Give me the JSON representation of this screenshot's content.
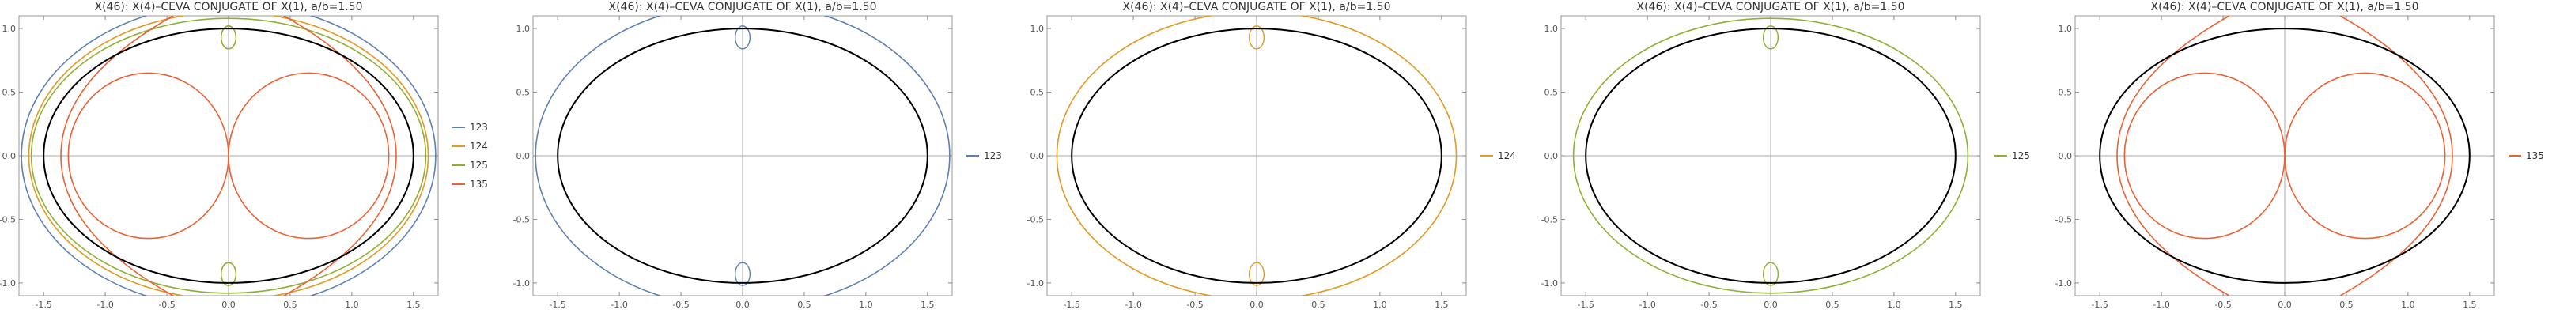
{
  "chart_data": [
    {
      "type": "line",
      "title": "X(46): X(4)–CEVA CONJUGATE OF X(1), a/b=1.50",
      "xlim": [
        -1.7,
        1.7
      ],
      "ylim": [
        -1.1,
        1.1
      ],
      "xticks": [
        -1.5,
        -1.0,
        -0.5,
        0.0,
        0.5,
        1.0,
        1.5
      ],
      "xtick_labels": [
        "-1.5",
        "-1.0",
        "-0.5",
        "0.0",
        "0.5",
        "1.0",
        "1.5"
      ],
      "yticks": [
        -1.0,
        -0.5,
        0.0,
        0.5,
        1.0
      ],
      "ytick_labels": [
        "-1.0",
        "-0.5",
        "0.0",
        "0.5",
        "1.0"
      ],
      "grid": false,
      "legend_position": "right",
      "reference_ellipse": {
        "a": 1.5,
        "b": 1.0,
        "color": "#000000"
      },
      "series": [
        {
          "name": "123",
          "color": "#5e81b5",
          "curve": "ellipse",
          "a": 1.68,
          "b": 1.2
        },
        {
          "name": "124",
          "color": "#e19c24",
          "curve": "ellipse",
          "a": 1.62,
          "b": 1.13
        },
        {
          "name": "125",
          "color": "#8fb032",
          "curve": "ellipse",
          "a": 1.6,
          "b": 1.08
        },
        {
          "name": "135",
          "color": "#eb6235",
          "curve": "circles",
          "r": 0.65,
          "cx": 0.65
        }
      ]
    },
    {
      "type": "line",
      "title": "X(46): X(4)–CEVA CONJUGATE OF X(1), a/b=1.50",
      "xlim": [
        -1.7,
        1.7
      ],
      "ylim": [
        -1.1,
        1.1
      ],
      "xticks": [
        -1.5,
        -1.0,
        -0.5,
        0.0,
        0.5,
        1.0,
        1.5
      ],
      "xtick_labels": [
        "-1.5",
        "-1.0",
        "-0.5",
        "0.0",
        "0.5",
        "1.0",
        "1.5"
      ],
      "yticks": [
        -1.0,
        -0.5,
        0.0,
        0.5,
        1.0
      ],
      "ytick_labels": [
        "-1.0",
        "-0.5",
        "0.0",
        "0.5",
        "1.0"
      ],
      "grid": false,
      "legend_position": "right",
      "reference_ellipse": {
        "a": 1.5,
        "b": 1.0,
        "color": "#000000"
      },
      "series": [
        {
          "name": "123",
          "color": "#5e81b5",
          "curve": "ellipse",
          "a": 1.68,
          "b": 1.2
        }
      ]
    },
    {
      "type": "line",
      "title": "X(46): X(4)–CEVA CONJUGATE OF X(1), a/b=1.50",
      "xlim": [
        -1.7,
        1.7
      ],
      "ylim": [
        -1.1,
        1.1
      ],
      "xticks": [
        -1.5,
        -1.0,
        -0.5,
        0.0,
        0.5,
        1.0,
        1.5
      ],
      "xtick_labels": [
        "-1.5",
        "-1.0",
        "-0.5",
        "0.0",
        "0.5",
        "1.0",
        "1.5"
      ],
      "yticks": [
        -1.0,
        -0.5,
        0.0,
        0.5,
        1.0
      ],
      "ytick_labels": [
        "-1.0",
        "-0.5",
        "0.0",
        "0.5",
        "1.0"
      ],
      "grid": false,
      "legend_position": "right",
      "reference_ellipse": {
        "a": 1.5,
        "b": 1.0,
        "color": "#000000"
      },
      "series": [
        {
          "name": "124",
          "color": "#e19c24",
          "curve": "ellipse",
          "a": 1.62,
          "b": 1.13
        }
      ]
    },
    {
      "type": "line",
      "title": "X(46): X(4)–CEVA CONJUGATE OF X(1), a/b=1.50",
      "xlim": [
        -1.7,
        1.7
      ],
      "ylim": [
        -1.1,
        1.1
      ],
      "xticks": [
        -1.5,
        -1.0,
        -0.5,
        0.0,
        0.5,
        1.0,
        1.5
      ],
      "xtick_labels": [
        "-1.5",
        "-1.0",
        "-0.5",
        "0.0",
        "0.5",
        "1.0",
        "1.5"
      ],
      "yticks": [
        -1.0,
        -0.5,
        0.0,
        0.5,
        1.0
      ],
      "ytick_labels": [
        "-1.0",
        "-0.5",
        "0.0",
        "0.5",
        "1.0"
      ],
      "grid": false,
      "legend_position": "right",
      "reference_ellipse": {
        "a": 1.5,
        "b": 1.0,
        "color": "#000000"
      },
      "series": [
        {
          "name": "125",
          "color": "#8fb032",
          "curve": "ellipse",
          "a": 1.6,
          "b": 1.08
        }
      ]
    },
    {
      "type": "line",
      "title": "X(46): X(4)–CEVA CONJUGATE OF X(1), a/b=1.50",
      "xlim": [
        -1.7,
        1.7
      ],
      "ylim": [
        -1.1,
        1.1
      ],
      "xticks": [
        -1.5,
        -1.0,
        -0.5,
        0.0,
        0.5,
        1.0,
        1.5
      ],
      "xtick_labels": [
        "-1.5",
        "-1.0",
        "-0.5",
        "0.0",
        "0.5",
        "1.0",
        "1.5"
      ],
      "yticks": [
        -1.0,
        -0.5,
        0.0,
        0.5,
        1.0
      ],
      "ytick_labels": [
        "-1.0",
        "-0.5",
        "0.0",
        "0.5",
        "1.0"
      ],
      "grid": false,
      "legend_position": "right",
      "reference_ellipse": {
        "a": 1.5,
        "b": 1.0,
        "color": "#000000"
      },
      "series": [
        {
          "name": "135",
          "color": "#eb6235",
          "curve": "circles",
          "r": 0.65,
          "cx": 0.65
        }
      ]
    }
  ]
}
